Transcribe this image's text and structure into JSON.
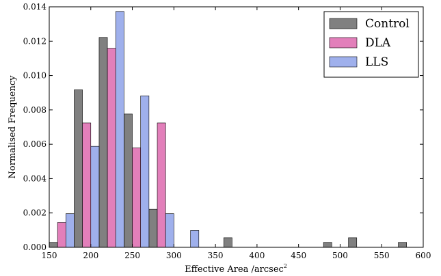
{
  "chart_data": {
    "type": "bar",
    "xlabel": "Effective Area /arcsec",
    "xlabel_superscript": "2",
    "ylabel": "Normalised Frequency",
    "xlim": [
      150,
      600
    ],
    "ylim": [
      0,
      0.014
    ],
    "xticks": [
      "150",
      "200",
      "250",
      "300",
      "350",
      "400",
      "450",
      "500",
      "550",
      "600"
    ],
    "yticks": [
      "0.000",
      "0.002",
      "0.004",
      "0.006",
      "0.008",
      "0.010",
      "0.012",
      "0.014"
    ],
    "bin_width": 30,
    "legend_position": "top-right",
    "grid": false,
    "series": [
      {
        "name": "Control",
        "color": "#808080",
        "x": [
          150,
          180,
          210,
          240,
          270,
          360,
          480,
          510,
          570
        ],
        "values": [
          0.00029,
          0.00917,
          0.01222,
          0.00776,
          0.00222,
          0.00056,
          0.00029,
          0.00056,
          0.00029
        ]
      },
      {
        "name": "DLA",
        "color": "#e27fba",
        "x": [
          150,
          180,
          210,
          240,
          270
        ],
        "values": [
          0.00145,
          0.00724,
          0.01159,
          0.00579,
          0.00724
        ]
      },
      {
        "name": "LLS",
        "color": "#9fb0ec",
        "x": [
          150,
          180,
          210,
          240,
          270,
          300
        ],
        "values": [
          0.00196,
          0.00588,
          0.01373,
          0.00882,
          0.00196,
          0.00098
        ]
      }
    ]
  }
}
